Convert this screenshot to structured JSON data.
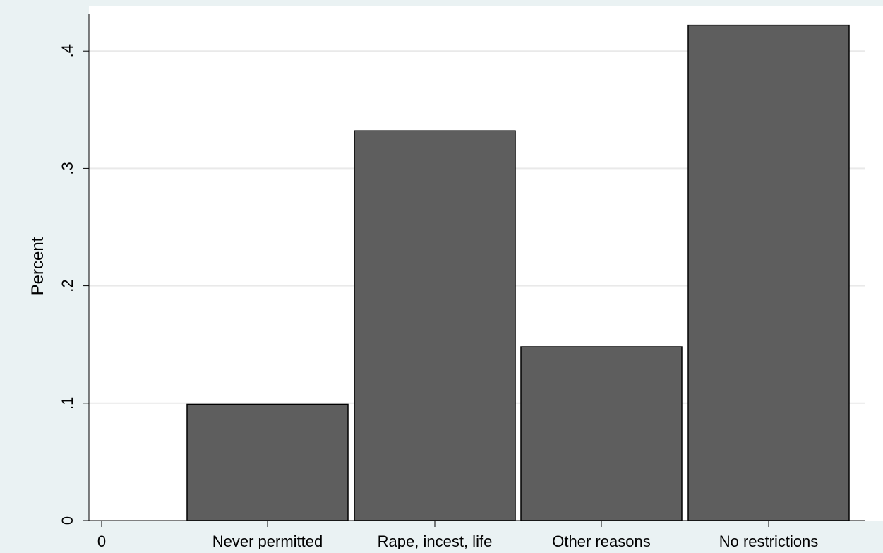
{
  "chart_data": {
    "type": "bar",
    "categories": [
      "Never permitted",
      "Rape, incest, life",
      "Other reasons",
      "No restrictions"
    ],
    "values": [
      0.099,
      0.332,
      0.148,
      0.422
    ],
    "x_zero_label": "0",
    "ylabel": "Percent",
    "xlabel": "",
    "y_ticks": [
      "0",
      ".1",
      ".2",
      ".3",
      ".4"
    ],
    "y_tick_values": [
      0,
      0.1,
      0.2,
      0.3,
      0.4
    ],
    "ylim": [
      0,
      0.44
    ],
    "grid": true,
    "legend": "none"
  },
  "colors": {
    "background": "#eaf2f3",
    "plot_background": "#ffffff",
    "bar_fill": "#5e5e5e",
    "bar_outline": "#000000",
    "gridline": "#e9e9e9"
  }
}
